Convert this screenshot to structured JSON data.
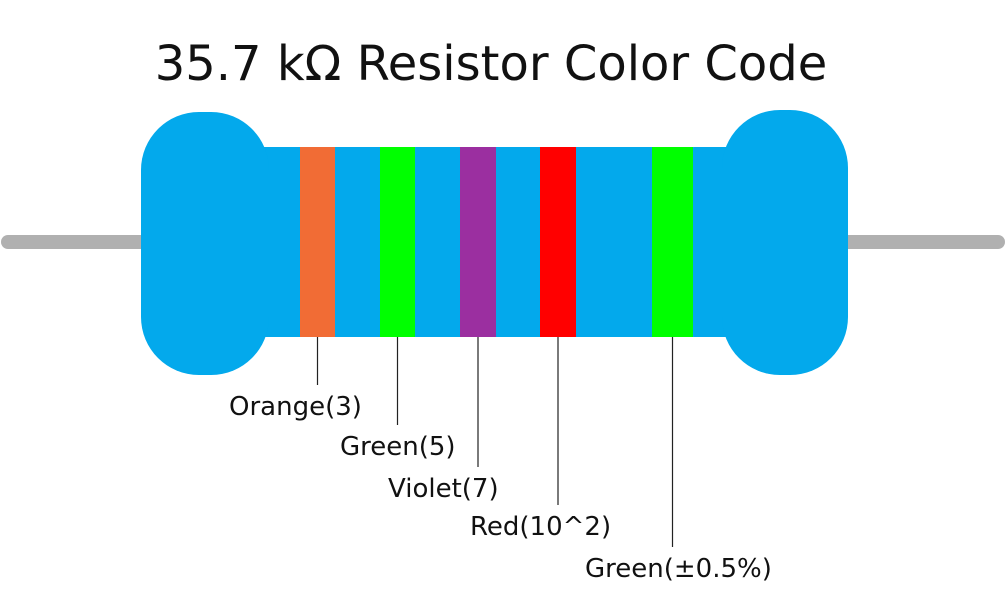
{
  "title": "35.7 kΩ Resistor Color Code",
  "bands": [
    {
      "label": "Orange(3)",
      "color": "#f16c35"
    },
    {
      "label": "Green(5)",
      "color": "#00ff00"
    },
    {
      "label": "Violet(7)",
      "color": "#9b2fa0"
    },
    {
      "label": "Red(10^2)",
      "color": "#ff0000"
    },
    {
      "label": "Green(±0.5%)",
      "color": "#00ff00"
    }
  ]
}
